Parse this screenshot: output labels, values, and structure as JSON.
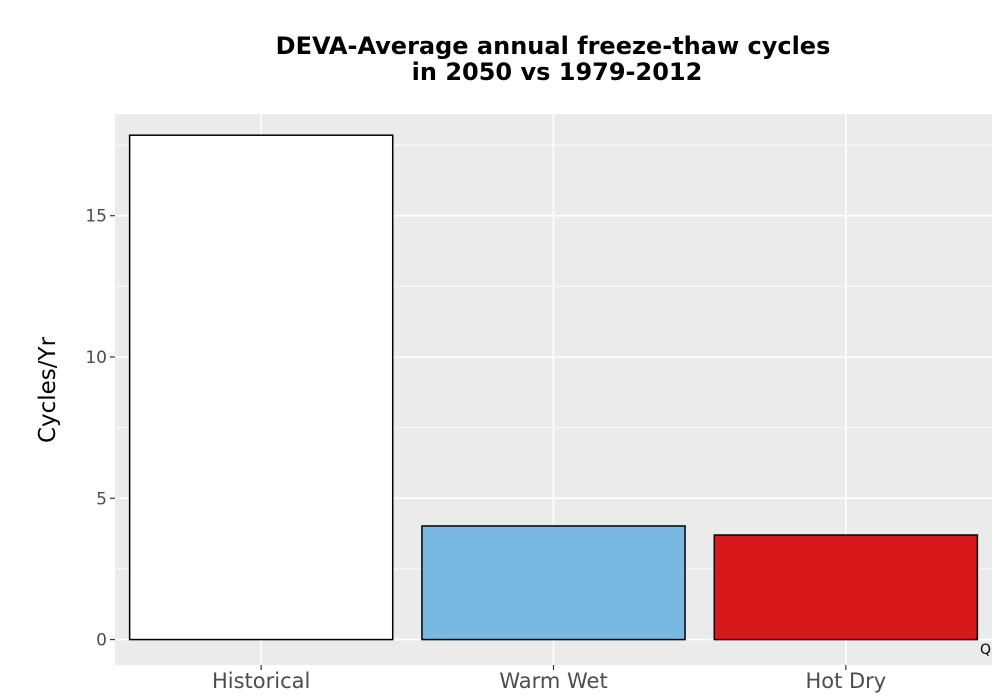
{
  "chart_data": {
    "type": "bar",
    "title_line1": "DEVA-Average annual freeze-thaw cycles",
    "title_line2": "in 2050 vs 1979-2012",
    "xlabel": "",
    "ylabel": "Cycles/Yr",
    "categories": [
      "Historical",
      "Warm Wet",
      "Hot Dry"
    ],
    "values": [
      17.85,
      4.02,
      3.7
    ],
    "colors": [
      "#ffffff",
      "#79b8e0",
      "#d7191c"
    ],
    "outline_color": "#000000",
    "ylim": [
      -0.9,
      18.6
    ],
    "yticks": [
      0,
      5,
      10,
      15
    ],
    "ytick_labels": [
      "0",
      "5",
      "10",
      "15"
    ],
    "grid": true,
    "panel_background": "#ebebeb",
    "grid_color": "#ffffff",
    "corner_note": "Q"
  }
}
